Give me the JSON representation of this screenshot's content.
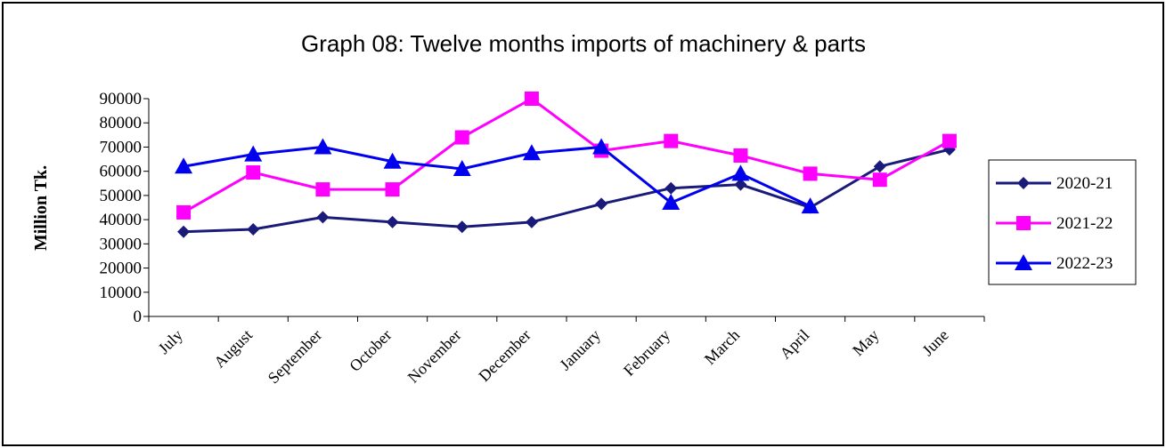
{
  "chart_data": {
    "type": "line",
    "title": "Graph 08: Twelve months imports of  machinery & parts",
    "y_label": "Million Tk.",
    "categories": [
      "July",
      "August",
      "September",
      "October",
      "November",
      "December",
      "January",
      "February",
      "March",
      "April",
      "May",
      "June"
    ],
    "series": [
      {
        "name": "2020-21",
        "color": "#1a1a7a",
        "marker": "diamond",
        "values": [
          35000,
          36000,
          41000,
          39000,
          37000,
          39000,
          46500,
          53000,
          54500,
          45000,
          62000,
          69000
        ]
      },
      {
        "name": "2021-22",
        "color": "#ff00ff",
        "marker": "square",
        "values": [
          43000,
          59500,
          52500,
          52500,
          74000,
          90000,
          68500,
          72500,
          66500,
          59000,
          56500,
          72500
        ]
      },
      {
        "name": "2022-23",
        "color": "#0000ee",
        "marker": "triangle",
        "values": [
          62000,
          67000,
          70000,
          64000,
          61000,
          67500,
          70000,
          47000,
          59000,
          45500,
          null,
          null
        ]
      }
    ],
    "ylim": [
      0,
      90000
    ],
    "yticks": [
      0,
      10000,
      20000,
      30000,
      40000,
      50000,
      60000,
      70000,
      80000,
      90000
    ],
    "legend": "right"
  }
}
